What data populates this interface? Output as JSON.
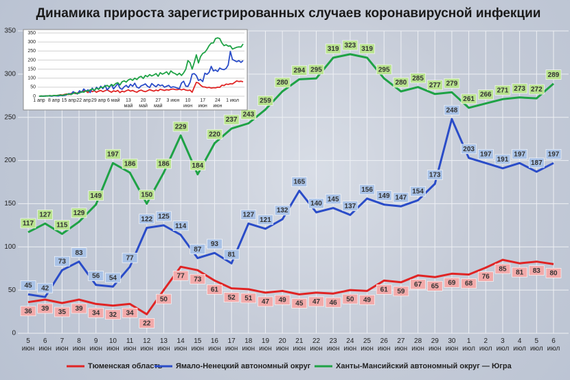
{
  "chart_data": [
    {
      "type": "line",
      "title": "Динамика прироста зарегистрированных случаев коронавирусной инфекции",
      "categories": [
        "5 июн",
        "6 июн",
        "7 июн",
        "8 июн",
        "9 июн",
        "10 июн",
        "11 июн",
        "12 июн",
        "13 июн",
        "14 июн",
        "15 июн",
        "16 июн",
        "17 июн",
        "18 июн",
        "19 июн",
        "20 июн",
        "21 июн",
        "22 июн",
        "23 июн",
        "24 июн",
        "25 июн",
        "26 июн",
        "27 июн",
        "28 июн",
        "29 июн",
        "30 июн",
        "1 июл",
        "2 июл",
        "3 июл",
        "4 июл",
        "5 июл",
        "6 июл"
      ],
      "series": [
        {
          "name": "Тюменская область",
          "color": "#e02424",
          "label_color": "#f2aaaa",
          "values": [
            36,
            39,
            35,
            39,
            34,
            32,
            34,
            22,
            50,
            77,
            73,
            61,
            52,
            51,
            47,
            49,
            45,
            47,
            46,
            50,
            49,
            61,
            59,
            67,
            65,
            69,
            68,
            76,
            85,
            81,
            83,
            80
          ]
        },
        {
          "name": "Ямало-Ненецкий автономный округ",
          "color": "#2a4cc8",
          "label_color": "#a9c2e6",
          "values": [
            45,
            42,
            73,
            83,
            56,
            54,
            77,
            122,
            125,
            114,
            87,
            93,
            81,
            127,
            121,
            132,
            165,
            140,
            145,
            137,
            156,
            149,
            147,
            154,
            173,
            248,
            203,
            197,
            191,
            197,
            187,
            197
          ]
        },
        {
          "name": "Ханты-Мансийский автономный округ — Югра",
          "color": "#1ea245",
          "label_color": "#b8e28e",
          "values": [
            117,
            127,
            115,
            129,
            149,
            197,
            186,
            150,
            186,
            229,
            184,
            220,
            237,
            243,
            259,
            280,
            294,
            295,
            319,
            323,
            319,
            295,
            280,
            285,
            277,
            279,
            261,
            266,
            271,
            273,
            272,
            289
          ]
        }
      ],
      "ylim": [
        0,
        350
      ],
      "yticks": [
        0,
        50,
        100,
        150,
        200,
        250,
        300,
        350
      ],
      "grid": true
    },
    {
      "type": "line",
      "categories": [
        "1 апр",
        null,
        null,
        null,
        null,
        null,
        null,
        "8 апр",
        null,
        null,
        null,
        null,
        null,
        null,
        "15 апр",
        null,
        null,
        null,
        null,
        null,
        null,
        "22 апр",
        null,
        null,
        null,
        null,
        null,
        null,
        "29 апр",
        null,
        null,
        null,
        null,
        null,
        null,
        "6 май",
        null,
        null,
        null,
        null,
        null,
        null,
        "13 май",
        null,
        null,
        null,
        null,
        null,
        null,
        "20 май",
        null,
        null,
        null,
        null,
        null,
        null,
        "27 май",
        null,
        null,
        null,
        null,
        null,
        null,
        "3 июн",
        null,
        null,
        null,
        null,
        null,
        null,
        "10 июн",
        null,
        null,
        null,
        null,
        null,
        null,
        "17 июн",
        null,
        null,
        null,
        null,
        null,
        null,
        "24 июн",
        null,
        null,
        null,
        null,
        null,
        null,
        "1 июл",
        null,
        null,
        null,
        null,
        null
      ],
      "series": [
        {
          "name": "Тюменская область",
          "color": "#e02424",
          "values": [
            0,
            1,
            0,
            2,
            1,
            3,
            2,
            4,
            3,
            5,
            8,
            6,
            10,
            12,
            9,
            15,
            20,
            14,
            18,
            25,
            22,
            30,
            28,
            20,
            35,
            25,
            30,
            22,
            28,
            32,
            25,
            30,
            35,
            28,
            22,
            30,
            26,
            32,
            20,
            28,
            24,
            30,
            35,
            28,
            32,
            26,
            22,
            30,
            34,
            28,
            25,
            30,
            36,
            32,
            28,
            34,
            30,
            38,
            35,
            32,
            36,
            34,
            38,
            40,
            37,
            36,
            39,
            35,
            39,
            34,
            32,
            34,
            22,
            50,
            77,
            73,
            61,
            52,
            51,
            47,
            49,
            45,
            47,
            46,
            50,
            49,
            61,
            59,
            67,
            65,
            69,
            68,
            76,
            85,
            81,
            83,
            80
          ]
        },
        {
          "name": "Ямало-Ненецкий автономный округ",
          "color": "#2a4cc8",
          "values": [
            0,
            0,
            1,
            0,
            2,
            1,
            0,
            3,
            2,
            1,
            4,
            3,
            5,
            8,
            15,
            10,
            25,
            18,
            12,
            30,
            22,
            40,
            28,
            35,
            20,
            45,
            30,
            50,
            38,
            55,
            42,
            60,
            35,
            48,
            65,
            40,
            55,
            70,
            45,
            38,
            52,
            60,
            48,
            66,
            55,
            72,
            50,
            45,
            58,
            62,
            68,
            55,
            48,
            70,
            60,
            52,
            65,
            58,
            62,
            50,
            55,
            60,
            48,
            52,
            50,
            45,
            42,
            73,
            83,
            56,
            54,
            77,
            122,
            125,
            114,
            87,
            93,
            81,
            127,
            121,
            132,
            165,
            140,
            145,
            137,
            156,
            149,
            147,
            154,
            173,
            248,
            203,
            197,
            191,
            197,
            187,
            197
          ]
        },
        {
          "name": "Ханты-Мансийский автономный округ — Югра",
          "color": "#1ea245",
          "values": [
            0,
            1,
            0,
            2,
            1,
            3,
            2,
            4,
            3,
            5,
            6,
            4,
            8,
            10,
            12,
            9,
            15,
            20,
            14,
            18,
            25,
            22,
            30,
            28,
            35,
            40,
            32,
            45,
            38,
            50,
            48,
            55,
            60,
            52,
            65,
            58,
            70,
            75,
            62,
            80,
            85,
            78,
            90,
            95,
            88,
            100,
            92,
            105,
            110,
            98,
            115,
            108,
            120,
            112,
            118,
            125,
            110,
            130,
            122,
            128,
            135,
            120,
            140,
            130,
            125,
            117,
            127,
            115,
            129,
            149,
            197,
            186,
            150,
            186,
            229,
            184,
            220,
            237,
            243,
            259,
            280,
            294,
            295,
            319,
            323,
            319,
            295,
            280,
            285,
            277,
            279,
            261,
            266,
            271,
            273,
            272,
            289
          ]
        }
      ],
      "ylim": [
        0,
        350
      ],
      "yticks": [
        0,
        50,
        100,
        150,
        200,
        250,
        300,
        350
      ],
      "grid": true
    }
  ]
}
